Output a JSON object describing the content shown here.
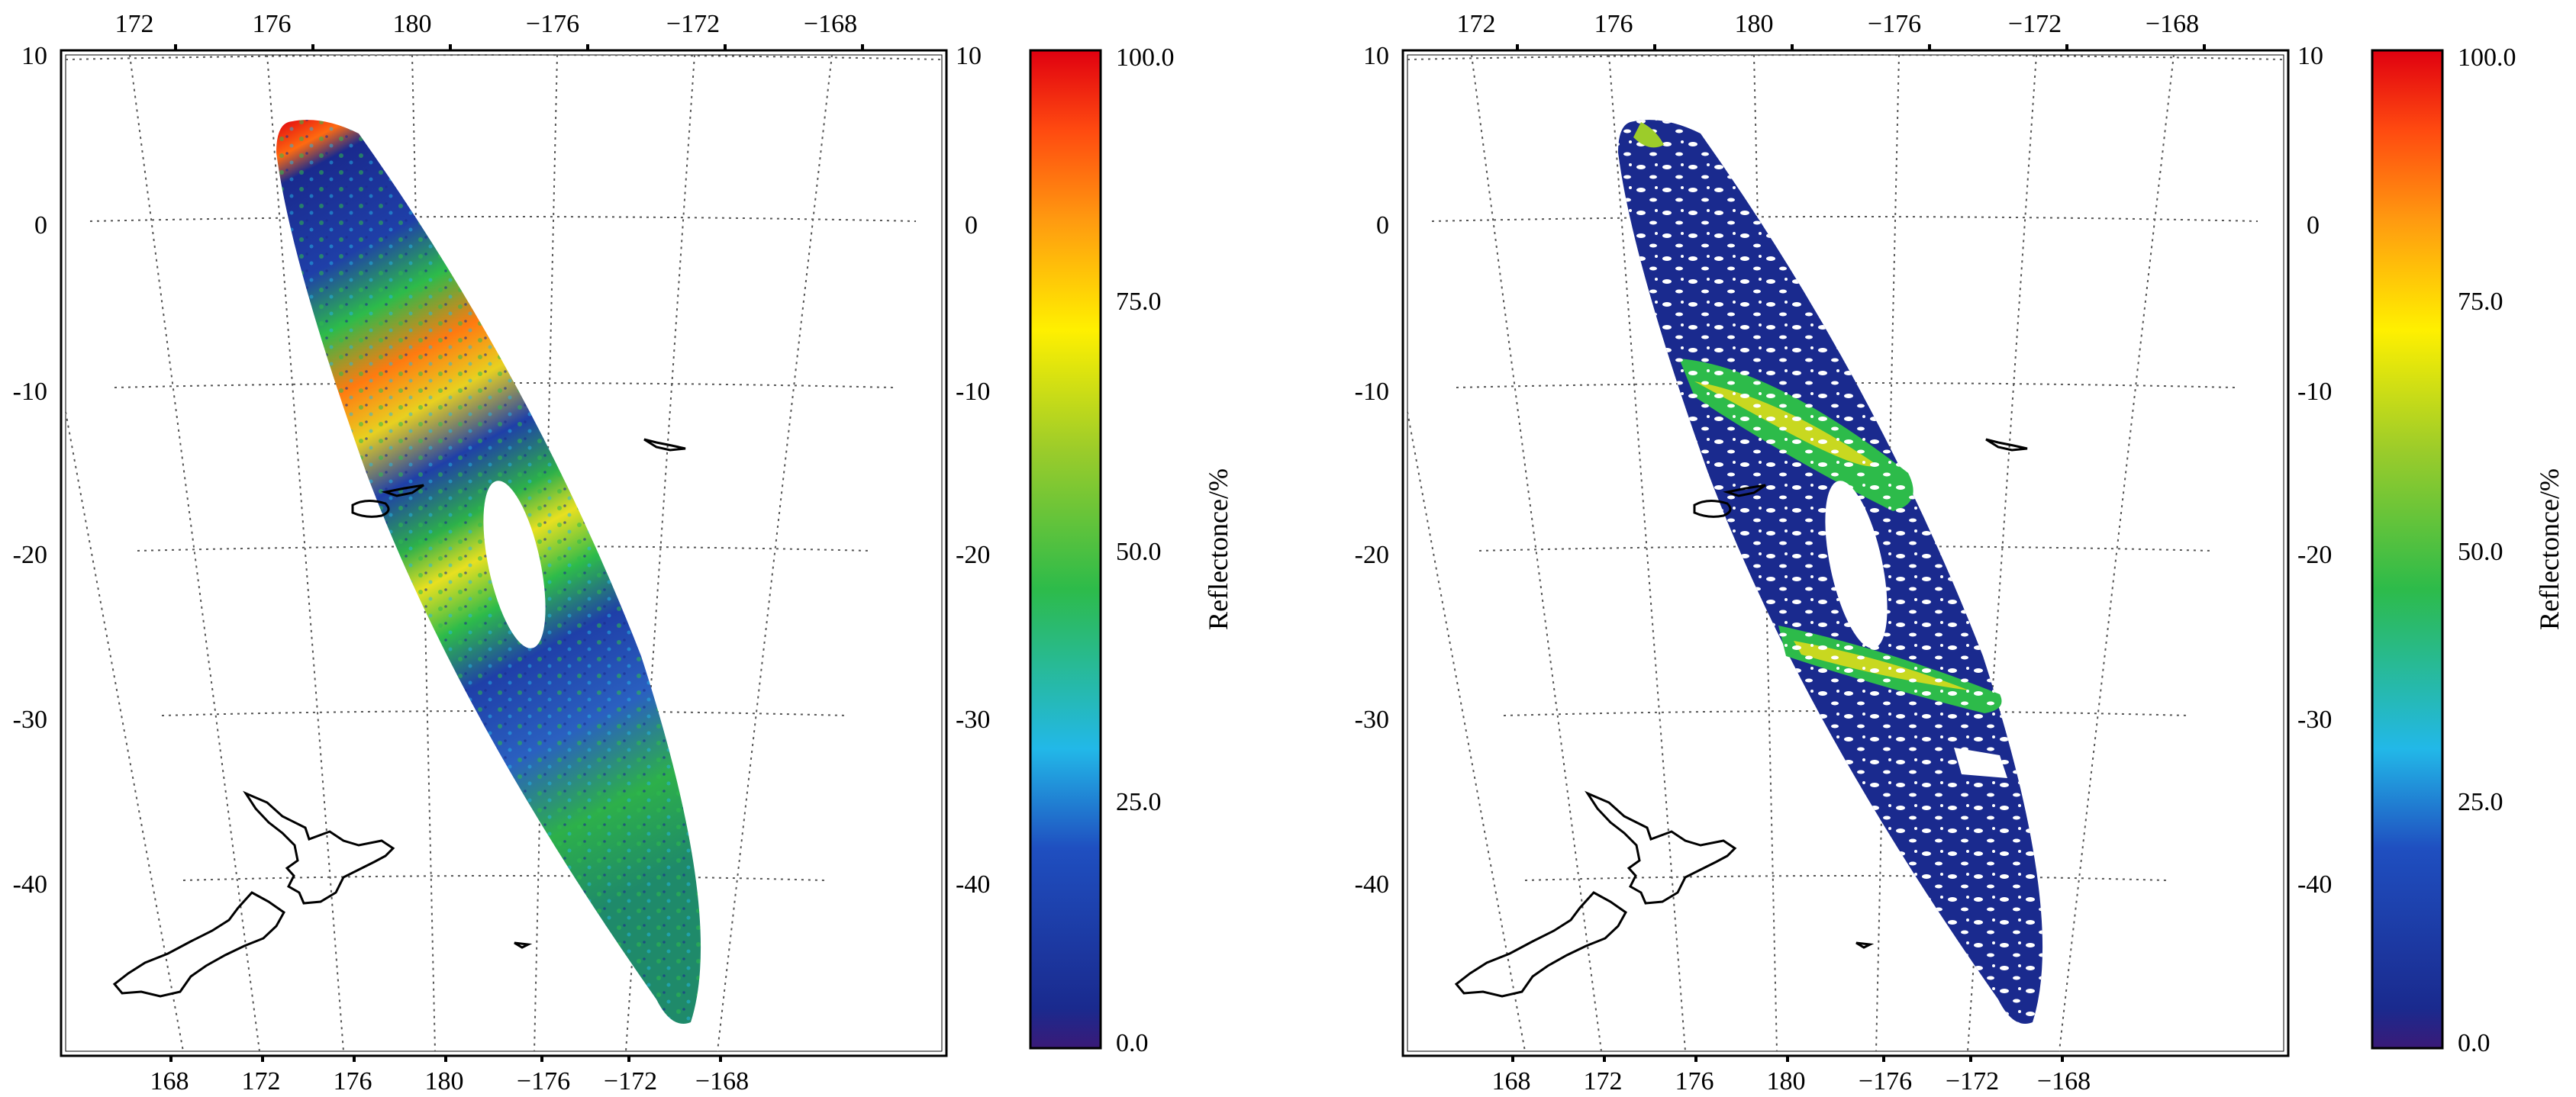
{
  "figure": {
    "panels": [
      {
        "id": "left",
        "top_lon_ticks": [
          "172",
          "176",
          "180",
          "−176",
          "−172",
          "−168"
        ],
        "bottom_lon_ticks": [
          "168",
          "172",
          "176",
          "180",
          "−176",
          "−172",
          "−168"
        ],
        "lat_ticks": [
          "10",
          "0",
          "-10",
          "-20",
          "-30",
          "-40"
        ],
        "colorbar": {
          "tick_labels": [
            "100.0",
            "75.0",
            "50.0",
            "25.0",
            "0.0"
          ],
          "label": "Reflectonce/%"
        }
      },
      {
        "id": "right",
        "top_lon_ticks": [
          "172",
          "176",
          "180",
          "−176",
          "−172",
          "−168"
        ],
        "bottom_lon_ticks": [
          "168",
          "172",
          "176",
          "180",
          "−176",
          "−172",
          "−168"
        ],
        "lat_ticks": [
          "10",
          "0",
          "-10",
          "-20",
          "-30",
          "-40"
        ],
        "colorbar": {
          "tick_labels": [
            "100.0",
            "75.0",
            "50.0",
            "25.0",
            "0.0"
          ],
          "label": "Reflectonce/%"
        }
      }
    ],
    "colorbar_range": [
      0,
      100
    ],
    "colorbar_colors": [
      "#3a1a78",
      "#1a2a8e",
      "#1f4fc0",
      "#22b8e8",
      "#2dbb4a",
      "#9ccc2a",
      "#fff000",
      "#ff9a10",
      "#ff4a10",
      "#e00010"
    ],
    "coastline_color": "#000000"
  }
}
